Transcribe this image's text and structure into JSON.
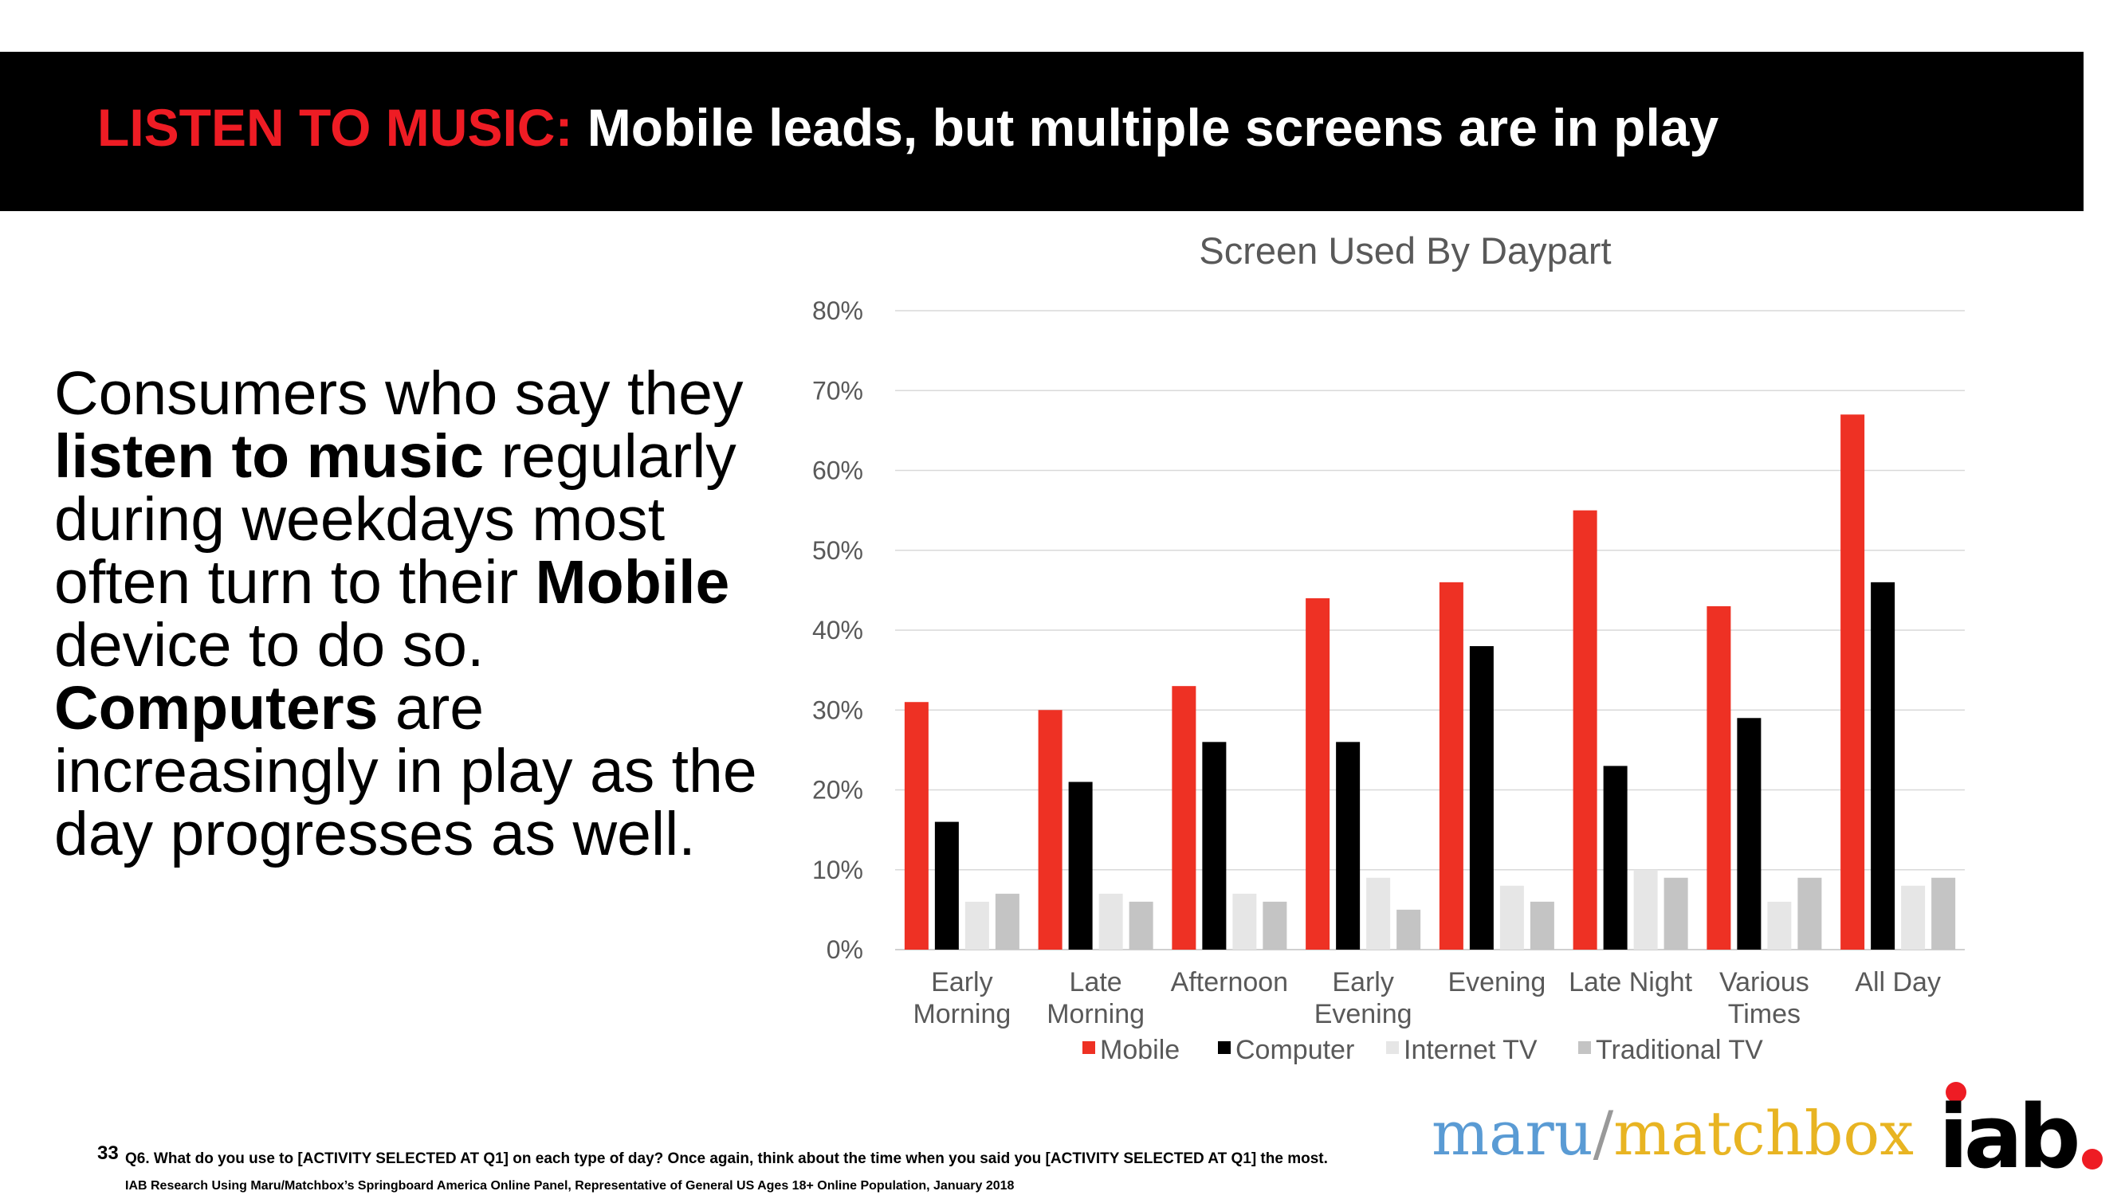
{
  "header": {
    "title_red": "LISTEN TO MUSIC:",
    "title_white": "Mobile leads, but multiple screens are in play"
  },
  "body_text": {
    "p1": "Consumers who say they",
    "p2_bold": "listen to music",
    "p2": " regularly during weekdays most often turn to their ",
    "p3_bold": "Mobile",
    "p4": " device to do so. ",
    "p5_bold": "Computers",
    "p6": " are increasingly in play as the day progresses as well."
  },
  "footer": {
    "page_number": "33",
    "question": "Q6. What do you use to [ACTIVITY SELECTED AT Q1] on each type of day?  Once again, think about the time when you said you [ACTIVITY SELECTED AT Q1] the most.",
    "source": "IAB Research Using Maru/Matchbox’s Springboard America Online Panel, Representative of General US Ages 18+ Online Population, January 2018"
  },
  "logos": {
    "maru": "maru",
    "slash": "/",
    "matchbox": "matchbox",
    "iab": "iab"
  },
  "colors": {
    "accent_red": "#ee1c24",
    "mobile": "#ee3124",
    "computer": "#000000",
    "internet_tv": "#e6e6e6",
    "traditional_tv": "#c4c4c4"
  },
  "chart_data": {
    "type": "bar",
    "title": "Screen Used By Daypart",
    "xlabel": "",
    "ylabel": "",
    "ylim": [
      0,
      80
    ],
    "yticks": [
      "0%",
      "10%",
      "20%",
      "30%",
      "40%",
      "50%",
      "60%",
      "70%",
      "80%"
    ],
    "grid": true,
    "legend_position": "bottom",
    "categories": [
      [
        "Early",
        "Morning"
      ],
      [
        "Late",
        "Morning"
      ],
      [
        "Afternoon"
      ],
      [
        "Early",
        "Evening"
      ],
      [
        "Evening"
      ],
      [
        "Late Night"
      ],
      [
        "Various",
        "Times"
      ],
      [
        "All Day"
      ]
    ],
    "series": [
      {
        "name": "Mobile",
        "color": "#ee3124",
        "values": [
          31,
          30,
          33,
          44,
          46,
          55,
          43,
          67
        ]
      },
      {
        "name": "Computer",
        "color": "#000000",
        "values": [
          16,
          21,
          26,
          26,
          38,
          23,
          29,
          46
        ]
      },
      {
        "name": "Internet TV",
        "color": "#e6e6e6",
        "values": [
          6,
          7,
          7,
          9,
          8,
          10,
          6,
          8
        ]
      },
      {
        "name": "Traditional TV",
        "color": "#c4c4c4",
        "values": [
          7,
          6,
          6,
          5,
          6,
          9,
          9,
          9
        ]
      }
    ]
  }
}
